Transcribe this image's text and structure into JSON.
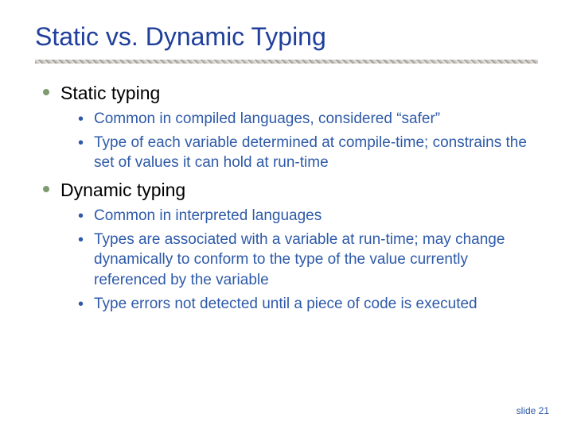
{
  "colors": {
    "title": "#1f3f9a",
    "top_bullet": "#7d9b6f",
    "top_text": "#000000",
    "sub_bullet": "#2e5aa8",
    "sub_text": "#2e5aa8",
    "footer": "#2e5aa8",
    "background": "#ffffff"
  },
  "typography": {
    "title_fontsize": 32,
    "top_fontsize": 23,
    "sub_fontsize": 19,
    "footer_fontsize": 12,
    "font_family": "Verdana"
  },
  "title": "Static vs. Dynamic Typing",
  "bullets": [
    {
      "label": "Static typing",
      "sub": [
        "Common in compiled languages, considered “safer”",
        "Type of each variable determined at compile-time; constrains the set of values it can hold at run-time"
      ]
    },
    {
      "label": "Dynamic typing",
      "sub": [
        "Common in interpreted languages",
        "Types are associated with a variable at run-time; may change dynamically to conform to the type of the value currently referenced by the variable",
        "Type errors not detected until a piece of code is executed"
      ]
    }
  ],
  "footer": {
    "label": "slide",
    "number": "21"
  }
}
